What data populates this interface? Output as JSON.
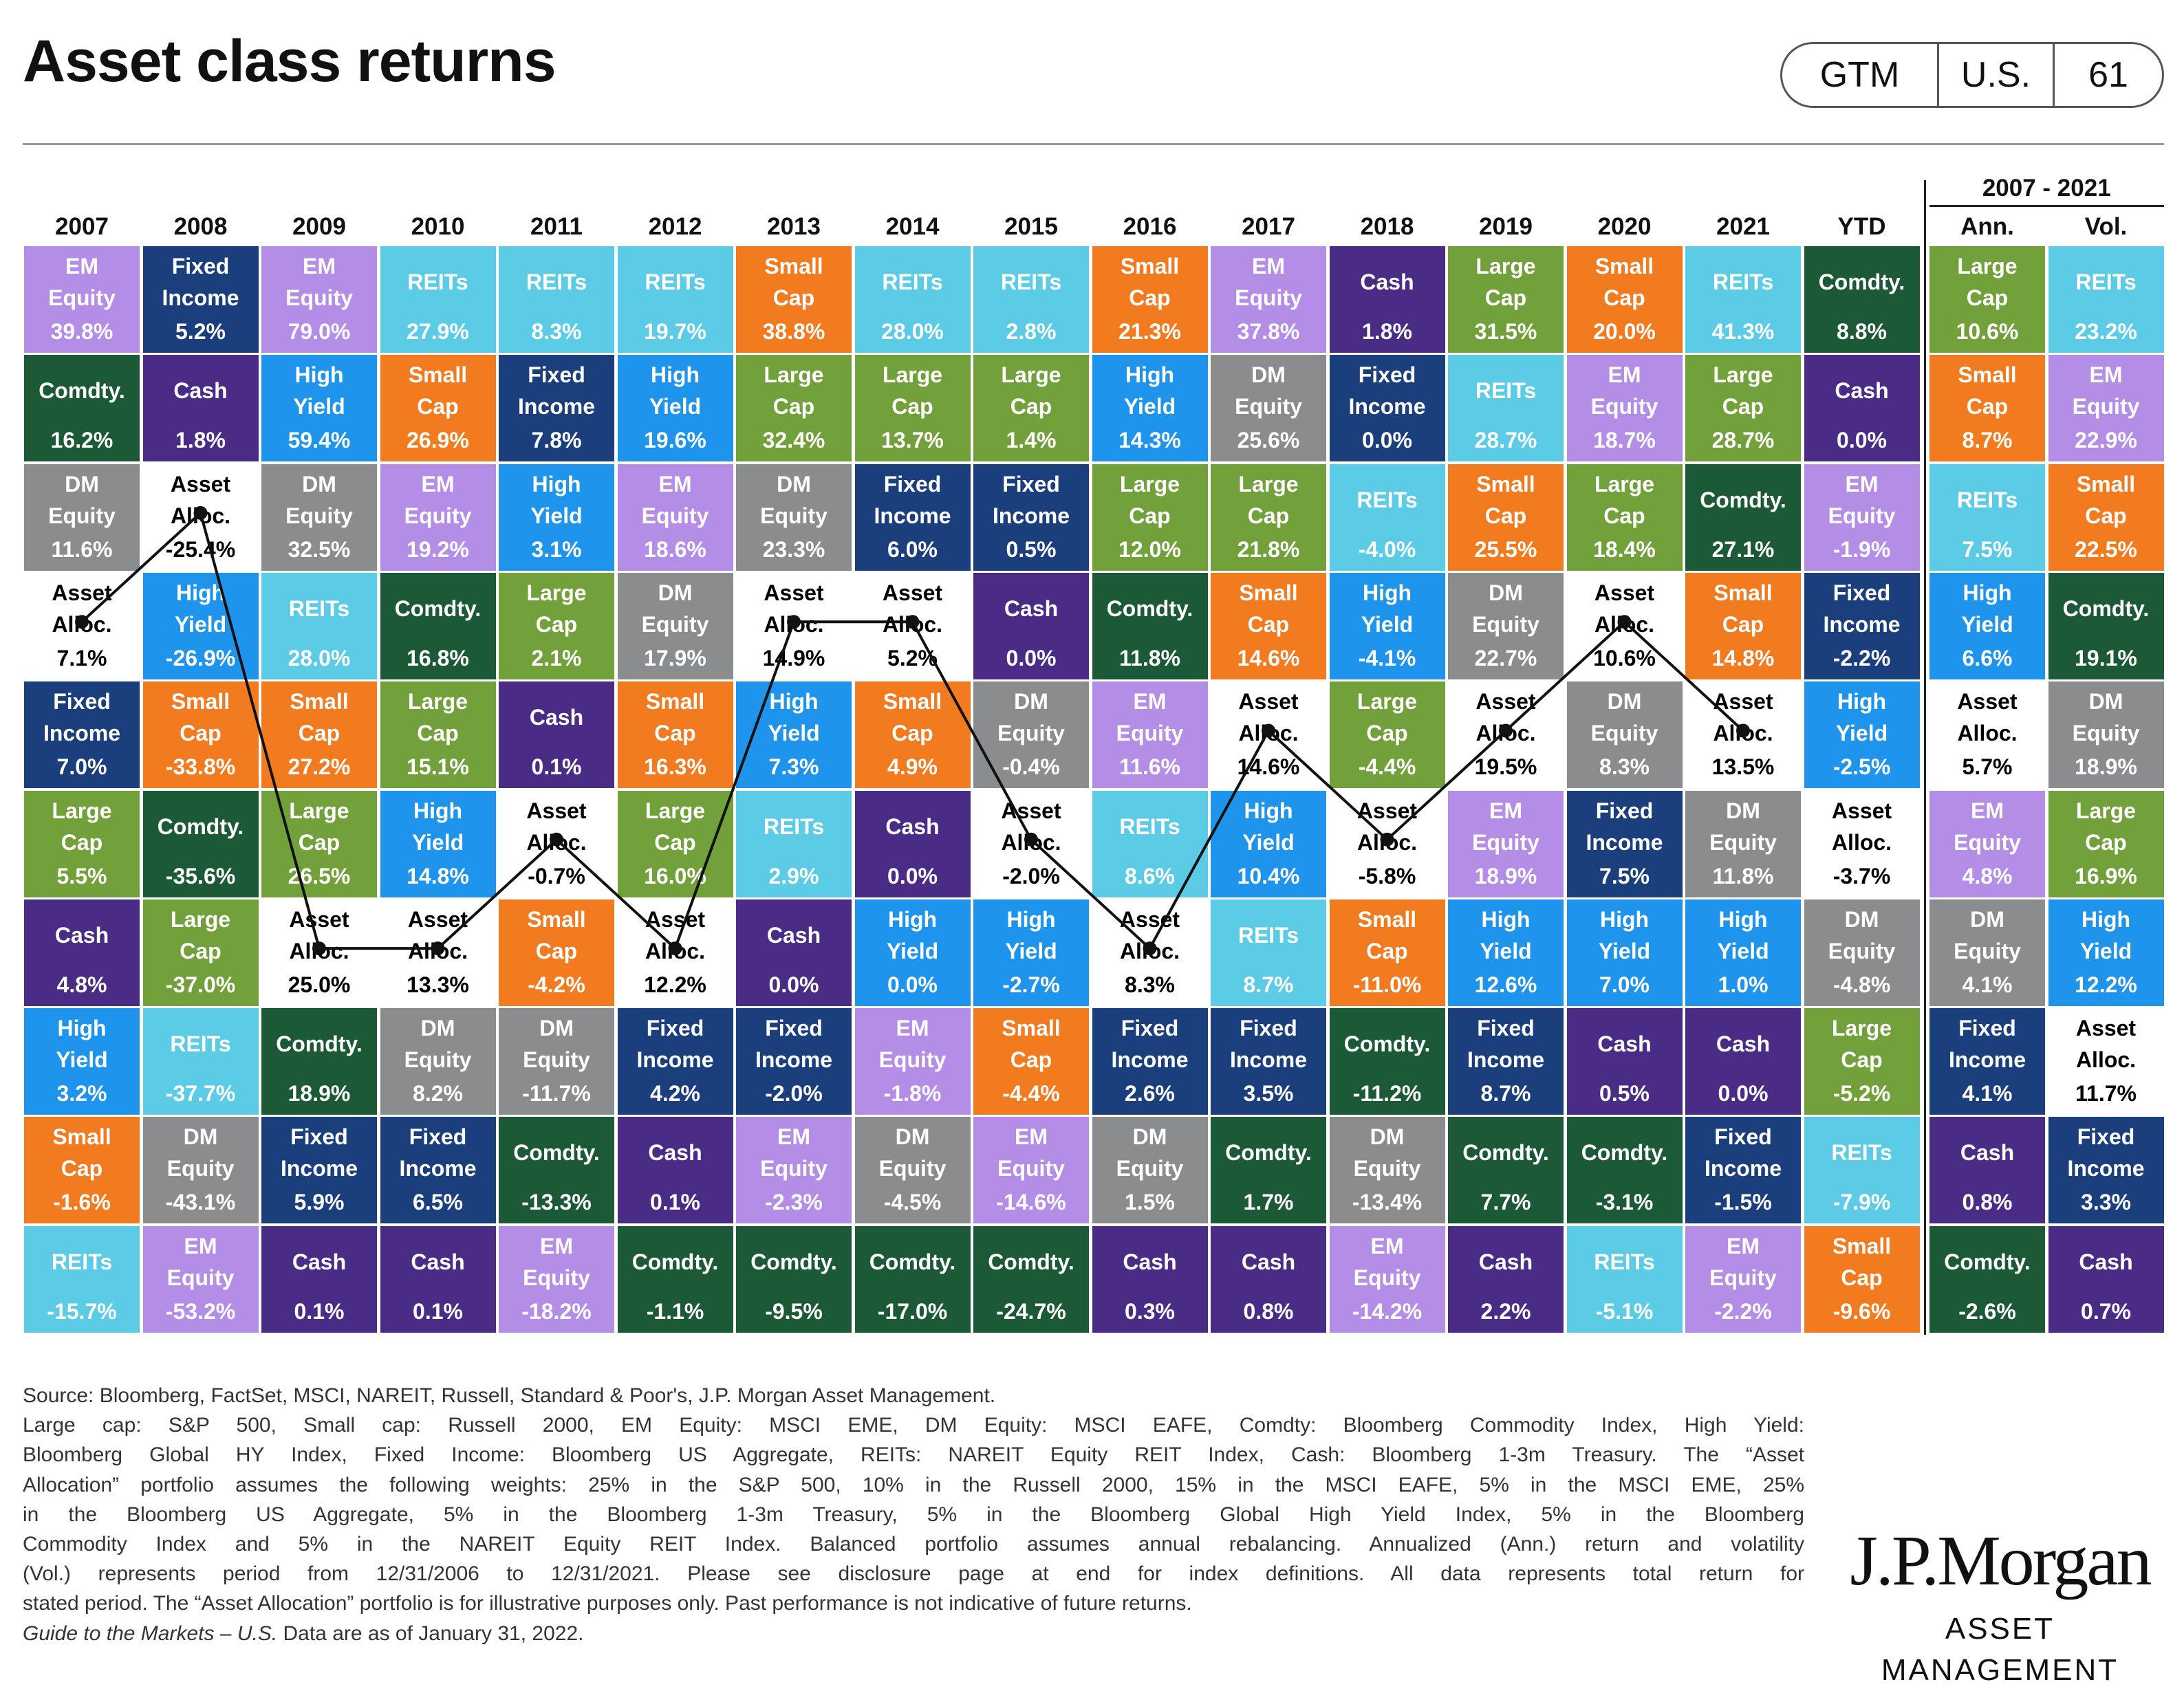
{
  "header": {
    "title": "Asset class returns",
    "badge": [
      "GTM",
      "U.S.",
      "61"
    ]
  },
  "table": {
    "classes": [
      {
        "name": "EM Equity",
        "fill": "#b48de6",
        "text": "#ffffff"
      },
      {
        "name": "Fixed Income",
        "fill": "#1b3f7d",
        "text": "#ffffff"
      },
      {
        "name": "Comdty.",
        "fill": "#1c5a37",
        "text": "#ffffff"
      },
      {
        "name": "DM Equity",
        "fill": "#8b8c8e",
        "text": "#ffffff"
      },
      {
        "name": "Asset Alloc.",
        "fill": "#ffffff",
        "text": "#000000",
        "line": true
      },
      {
        "name": "High Yield",
        "fill": "#1f94ec",
        "text": "#ffffff"
      },
      {
        "name": "Small Cap",
        "fill": "#f27a1f",
        "text": "#ffffff"
      },
      {
        "name": "Large Cap",
        "fill": "#72a03a",
        "text": "#ffffff"
      },
      {
        "name": "Cash",
        "fill": "#4a2c86",
        "text": "#ffffff"
      },
      {
        "name": "REITs",
        "fill": "#5ccbe6",
        "text": "#ffffff"
      }
    ],
    "years": [
      {
        "header": "2007",
        "cells": [
          [
            "EM Equity",
            "39.8%"
          ],
          [
            "Comdty.",
            "16.2%"
          ],
          [
            "DM Equity",
            "11.6%"
          ],
          [
            "Asset Alloc.",
            "7.1%"
          ],
          [
            "Fixed Income",
            "7.0%"
          ],
          [
            "Large Cap",
            "5.5%"
          ],
          [
            "Cash",
            "4.8%"
          ],
          [
            "High Yield",
            "3.2%"
          ],
          [
            "Small Cap",
            "-1.6%"
          ],
          [
            "REITs",
            "-15.7%"
          ]
        ]
      },
      {
        "header": "2008",
        "cells": [
          [
            "Fixed Income",
            "5.2%"
          ],
          [
            "Cash",
            "1.8%"
          ],
          [
            "Asset Alloc.",
            "-25.4%"
          ],
          [
            "High Yield",
            "-26.9%"
          ],
          [
            "Small Cap",
            "-33.8%"
          ],
          [
            "Comdty.",
            "-35.6%"
          ],
          [
            "Large Cap",
            "-37.0%"
          ],
          [
            "REITs",
            "-37.7%"
          ],
          [
            "DM Equity",
            "-43.1%"
          ],
          [
            "EM Equity",
            "-53.2%"
          ]
        ]
      },
      {
        "header": "2009",
        "cells": [
          [
            "EM Equity",
            "79.0%"
          ],
          [
            "High Yield",
            "59.4%"
          ],
          [
            "DM Equity",
            "32.5%"
          ],
          [
            "REITs",
            "28.0%"
          ],
          [
            "Small Cap",
            "27.2%"
          ],
          [
            "Large Cap",
            "26.5%"
          ],
          [
            "Asset Alloc.",
            "25.0%"
          ],
          [
            "Comdty.",
            "18.9%"
          ],
          [
            "Fixed Income",
            "5.9%"
          ],
          [
            "Cash",
            "0.1%"
          ]
        ]
      },
      {
        "header": "2010",
        "cells": [
          [
            "REITs",
            "27.9%"
          ],
          [
            "Small Cap",
            "26.9%"
          ],
          [
            "EM Equity",
            "19.2%"
          ],
          [
            "Comdty.",
            "16.8%"
          ],
          [
            "Large Cap",
            "15.1%"
          ],
          [
            "High Yield",
            "14.8%"
          ],
          [
            "Asset Alloc.",
            "13.3%"
          ],
          [
            "DM Equity",
            "8.2%"
          ],
          [
            "Fixed Income",
            "6.5%"
          ],
          [
            "Cash",
            "0.1%"
          ]
        ]
      },
      {
        "header": "2011",
        "cells": [
          [
            "REITs",
            "8.3%"
          ],
          [
            "Fixed Income",
            "7.8%"
          ],
          [
            "High Yield",
            "3.1%"
          ],
          [
            "Large Cap",
            "2.1%"
          ],
          [
            "Cash",
            "0.1%"
          ],
          [
            "Asset Alloc.",
            "-0.7%"
          ],
          [
            "Small Cap",
            "-4.2%"
          ],
          [
            "DM Equity",
            "-11.7%"
          ],
          [
            "Comdty.",
            "-13.3%"
          ],
          [
            "EM Equity",
            "-18.2%"
          ]
        ]
      },
      {
        "header": "2012",
        "cells": [
          [
            "REITs",
            "19.7%"
          ],
          [
            "High Yield",
            "19.6%"
          ],
          [
            "EM Equity",
            "18.6%"
          ],
          [
            "DM Equity",
            "17.9%"
          ],
          [
            "Small Cap",
            "16.3%"
          ],
          [
            "Large Cap",
            "16.0%"
          ],
          [
            "Asset Alloc.",
            "12.2%"
          ],
          [
            "Fixed Income",
            "4.2%"
          ],
          [
            "Cash",
            "0.1%"
          ],
          [
            "Comdty.",
            "-1.1%"
          ]
        ]
      },
      {
        "header": "2013",
        "cells": [
          [
            "Small Cap",
            "38.8%"
          ],
          [
            "Large Cap",
            "32.4%"
          ],
          [
            "DM Equity",
            "23.3%"
          ],
          [
            "Asset Alloc.",
            "14.9%"
          ],
          [
            "High Yield",
            "7.3%"
          ],
          [
            "REITs",
            "2.9%"
          ],
          [
            "Cash",
            "0.0%"
          ],
          [
            "Fixed Income",
            "-2.0%"
          ],
          [
            "EM Equity",
            "-2.3%"
          ],
          [
            "Comdty.",
            "-9.5%"
          ]
        ]
      },
      {
        "header": "2014",
        "cells": [
          [
            "REITs",
            "28.0%"
          ],
          [
            "Large Cap",
            "13.7%"
          ],
          [
            "Fixed Income",
            "6.0%"
          ],
          [
            "Asset Alloc.",
            "5.2%"
          ],
          [
            "Small Cap",
            "4.9%"
          ],
          [
            "Cash",
            "0.0%"
          ],
          [
            "High Yield",
            "0.0%"
          ],
          [
            "EM Equity",
            "-1.8%"
          ],
          [
            "DM Equity",
            "-4.5%"
          ],
          [
            "Comdty.",
            "-17.0%"
          ]
        ]
      },
      {
        "header": "2015",
        "cells": [
          [
            "REITs",
            "2.8%"
          ],
          [
            "Large Cap",
            "1.4%"
          ],
          [
            "Fixed Income",
            "0.5%"
          ],
          [
            "Cash",
            "0.0%"
          ],
          [
            "DM Equity",
            "-0.4%"
          ],
          [
            "Asset Alloc.",
            "-2.0%"
          ],
          [
            "High Yield",
            "-2.7%"
          ],
          [
            "Small Cap",
            "-4.4%"
          ],
          [
            "EM Equity",
            "-14.6%"
          ],
          [
            "Comdty.",
            "-24.7%"
          ]
        ]
      },
      {
        "header": "2016",
        "cells": [
          [
            "Small Cap",
            "21.3%"
          ],
          [
            "High Yield",
            "14.3%"
          ],
          [
            "Large Cap",
            "12.0%"
          ],
          [
            "Comdty.",
            "11.8%"
          ],
          [
            "EM Equity",
            "11.6%"
          ],
          [
            "REITs",
            "8.6%"
          ],
          [
            "Asset Alloc.",
            "8.3%"
          ],
          [
            "Fixed Income",
            "2.6%"
          ],
          [
            "DM Equity",
            "1.5%"
          ],
          [
            "Cash",
            "0.3%"
          ]
        ]
      },
      {
        "header": "2017",
        "cells": [
          [
            "EM Equity",
            "37.8%"
          ],
          [
            "DM Equity",
            "25.6%"
          ],
          [
            "Large Cap",
            "21.8%"
          ],
          [
            "Small Cap",
            "14.6%"
          ],
          [
            "Asset Alloc.",
            "14.6%"
          ],
          [
            "High Yield",
            "10.4%"
          ],
          [
            "REITs",
            "8.7%"
          ],
          [
            "Fixed Income",
            "3.5%"
          ],
          [
            "Comdty.",
            "1.7%"
          ],
          [
            "Cash",
            "0.8%"
          ]
        ]
      },
      {
        "header": "2018",
        "cells": [
          [
            "Cash",
            "1.8%"
          ],
          [
            "Fixed Income",
            "0.0%"
          ],
          [
            "REITs",
            "-4.0%"
          ],
          [
            "High Yield",
            "-4.1%"
          ],
          [
            "Large Cap",
            "-4.4%"
          ],
          [
            "Asset Alloc.",
            "-5.8%"
          ],
          [
            "Small Cap",
            "-11.0%"
          ],
          [
            "Comdty.",
            "-11.2%"
          ],
          [
            "DM Equity",
            "-13.4%"
          ],
          [
            "EM Equity",
            "-14.2%"
          ]
        ]
      },
      {
        "header": "2019",
        "cells": [
          [
            "Large Cap",
            "31.5%"
          ],
          [
            "REITs",
            "28.7%"
          ],
          [
            "Small Cap",
            "25.5%"
          ],
          [
            "DM Equity",
            "22.7%"
          ],
          [
            "Asset Alloc.",
            "19.5%"
          ],
          [
            "EM Equity",
            "18.9%"
          ],
          [
            "High Yield",
            "12.6%"
          ],
          [
            "Fixed Income",
            "8.7%"
          ],
          [
            "Comdty.",
            "7.7%"
          ],
          [
            "Cash",
            "2.2%"
          ]
        ]
      },
      {
        "header": "2020",
        "cells": [
          [
            "Small Cap",
            "20.0%"
          ],
          [
            "EM Equity",
            "18.7%"
          ],
          [
            "Large Cap",
            "18.4%"
          ],
          [
            "Asset Alloc.",
            "10.6%"
          ],
          [
            "DM Equity",
            "8.3%"
          ],
          [
            "Fixed Income",
            "7.5%"
          ],
          [
            "High Yield",
            "7.0%"
          ],
          [
            "Cash",
            "0.5%"
          ],
          [
            "Comdty.",
            "-3.1%"
          ],
          [
            "REITs",
            "-5.1%"
          ]
        ]
      },
      {
        "header": "2021",
        "cells": [
          [
            "REITs",
            "41.3%"
          ],
          [
            "Large Cap",
            "28.7%"
          ],
          [
            "Comdty.",
            "27.1%"
          ],
          [
            "Small Cap",
            "14.8%"
          ],
          [
            "Asset Alloc.",
            "13.5%"
          ],
          [
            "DM Equity",
            "11.8%"
          ],
          [
            "High Yield",
            "1.0%"
          ],
          [
            "Cash",
            "0.0%"
          ],
          [
            "Fixed Income",
            "-1.5%"
          ],
          [
            "EM Equity",
            "-2.2%"
          ]
        ]
      }
    ],
    "ytd": {
      "header": "YTD",
      "cells": [
        [
          "Comdty.",
          "8.8%"
        ],
        [
          "Cash",
          "0.0%"
        ],
        [
          "EM Equity",
          "-1.9%"
        ],
        [
          "Fixed Income",
          "-2.2%"
        ],
        [
          "High Yield",
          "-2.5%"
        ],
        [
          "Asset Alloc.",
          "-3.7%"
        ],
        [
          "DM Equity",
          "-4.8%"
        ],
        [
          "Large Cap",
          "-5.2%"
        ],
        [
          "REITs",
          "-7.9%"
        ],
        [
          "Small Cap",
          "-9.6%"
        ]
      ]
    },
    "period": {
      "label": "2007 - 2021",
      "columns": [
        {
          "header": "Ann.",
          "cells": [
            [
              "Large Cap",
              "10.6%"
            ],
            [
              "Small Cap",
              "8.7%"
            ],
            [
              "REITs",
              "7.5%"
            ],
            [
              "High Yield",
              "6.6%"
            ],
            [
              "Asset Alloc.",
              "5.7%"
            ],
            [
              "EM Equity",
              "4.8%"
            ],
            [
              "DM Equity",
              "4.1%"
            ],
            [
              "Fixed Income",
              "4.1%"
            ],
            [
              "Cash",
              "0.8%"
            ],
            [
              "Comdty.",
              "-2.6%"
            ]
          ]
        },
        {
          "header": "Vol.",
          "cells": [
            [
              "REITs",
              "23.2%"
            ],
            [
              "EM Equity",
              "22.9%"
            ],
            [
              "Small Cap",
              "22.5%"
            ],
            [
              "Comdty.",
              "19.1%"
            ],
            [
              "DM Equity",
              "18.9%"
            ],
            [
              "Large Cap",
              "16.9%"
            ],
            [
              "High Yield",
              "12.2%"
            ],
            [
              "Asset Alloc.",
              "11.7%"
            ],
            [
              "Fixed Income",
              "3.3%"
            ],
            [
              "Cash",
              "0.7%"
            ]
          ]
        }
      ]
    }
  },
  "footnote": {
    "source": "Source: Bloomberg, FactSet, MSCI, NAREIT, Russell, Standard & Poor's, J.P. Morgan Asset Management.",
    "lines": [
      "Large cap: S&P 500, Small cap: Russell 2000, EM Equity: MSCI EME, DM Equity: MSCI EAFE, Comdty: Bloomberg Commodity Index, High Yield:",
      "Bloomberg Global HY Index, Fixed Income: Bloomberg US Aggregate, REITs: NAREIT Equity REIT Index, Cash: Bloomberg 1-3m Treasury. The “Asset",
      "Allocation” portfolio assumes the following weights: 25% in the S&P 500, 10% in the Russell 2000, 15% in the MSCI EAFE, 5% in the MSCI EME, 25%",
      "in the Bloomberg US Aggregate, 5% in the Bloomberg 1-3m Treasury, 5% in the Bloomberg Global High Yield Index, 5% in the Bloomberg",
      "Commodity Index and 5% in the NAREIT Equity REIT Index. Balanced portfolio assumes annual rebalancing. Annualized (Ann.) return and volatility",
      "(Vol.) represents period from 12/31/2006 to 12/31/2021. Please see disclosure page at end for index definitions. All data represents total return for",
      "stated period. The “Asset Allocation” portfolio is for illustrative purposes only. Past performance is not indicative of future returns."
    ],
    "guide": "Guide to the Markets – U.S.",
    "date": "Data are as of January 31, 2022."
  },
  "logo": {
    "name": "J.P.Morgan",
    "sub": "ASSET MANAGEMENT"
  }
}
